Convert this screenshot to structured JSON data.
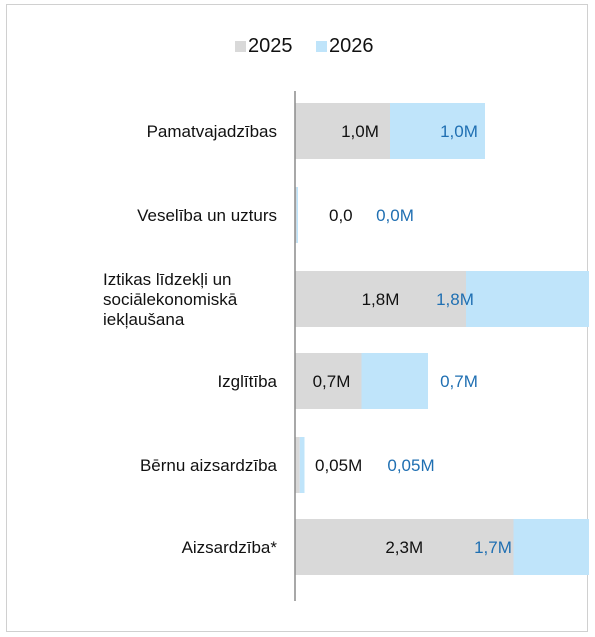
{
  "chart_data": {
    "type": "bar",
    "orientation": "horizontal",
    "stacked": true,
    "title": "",
    "xlabel": "",
    "ylabel": "",
    "legend_position": "top-center",
    "grid": false,
    "categories": [
      [
        "Pamatvajadzības"
      ],
      [
        "Veselība un uzturs"
      ],
      [
        "Iztikas līdzekļi un",
        "sociālekonomiskā",
        "iekļaušana"
      ],
      [
        "Izglītība"
      ],
      [
        "Bērnu aizsardzība"
      ],
      [
        "Aizsardzība*"
      ]
    ],
    "series": [
      {
        "name": "2025",
        "color": "#d9d9d9",
        "label_color": "#111111",
        "values": [
          1.0,
          0.0,
          1.8,
          0.7,
          0.05,
          2.3
        ],
        "labels": [
          "1,0M",
          "0,0",
          "1,8M",
          "0,7M",
          "0,05M",
          "2,3M"
        ]
      },
      {
        "name": "2026",
        "color": "#bfe4fa",
        "label_color": "#1f6fb2",
        "values": [
          1.0,
          0.0,
          1.8,
          0.7,
          0.05,
          1.7
        ],
        "labels": [
          "1,0M",
          "0,0M",
          "1,8M",
          "0,7M",
          "0,05M",
          "1,7M"
        ]
      }
    ],
    "xlim": [
      0,
      4.0
    ]
  }
}
